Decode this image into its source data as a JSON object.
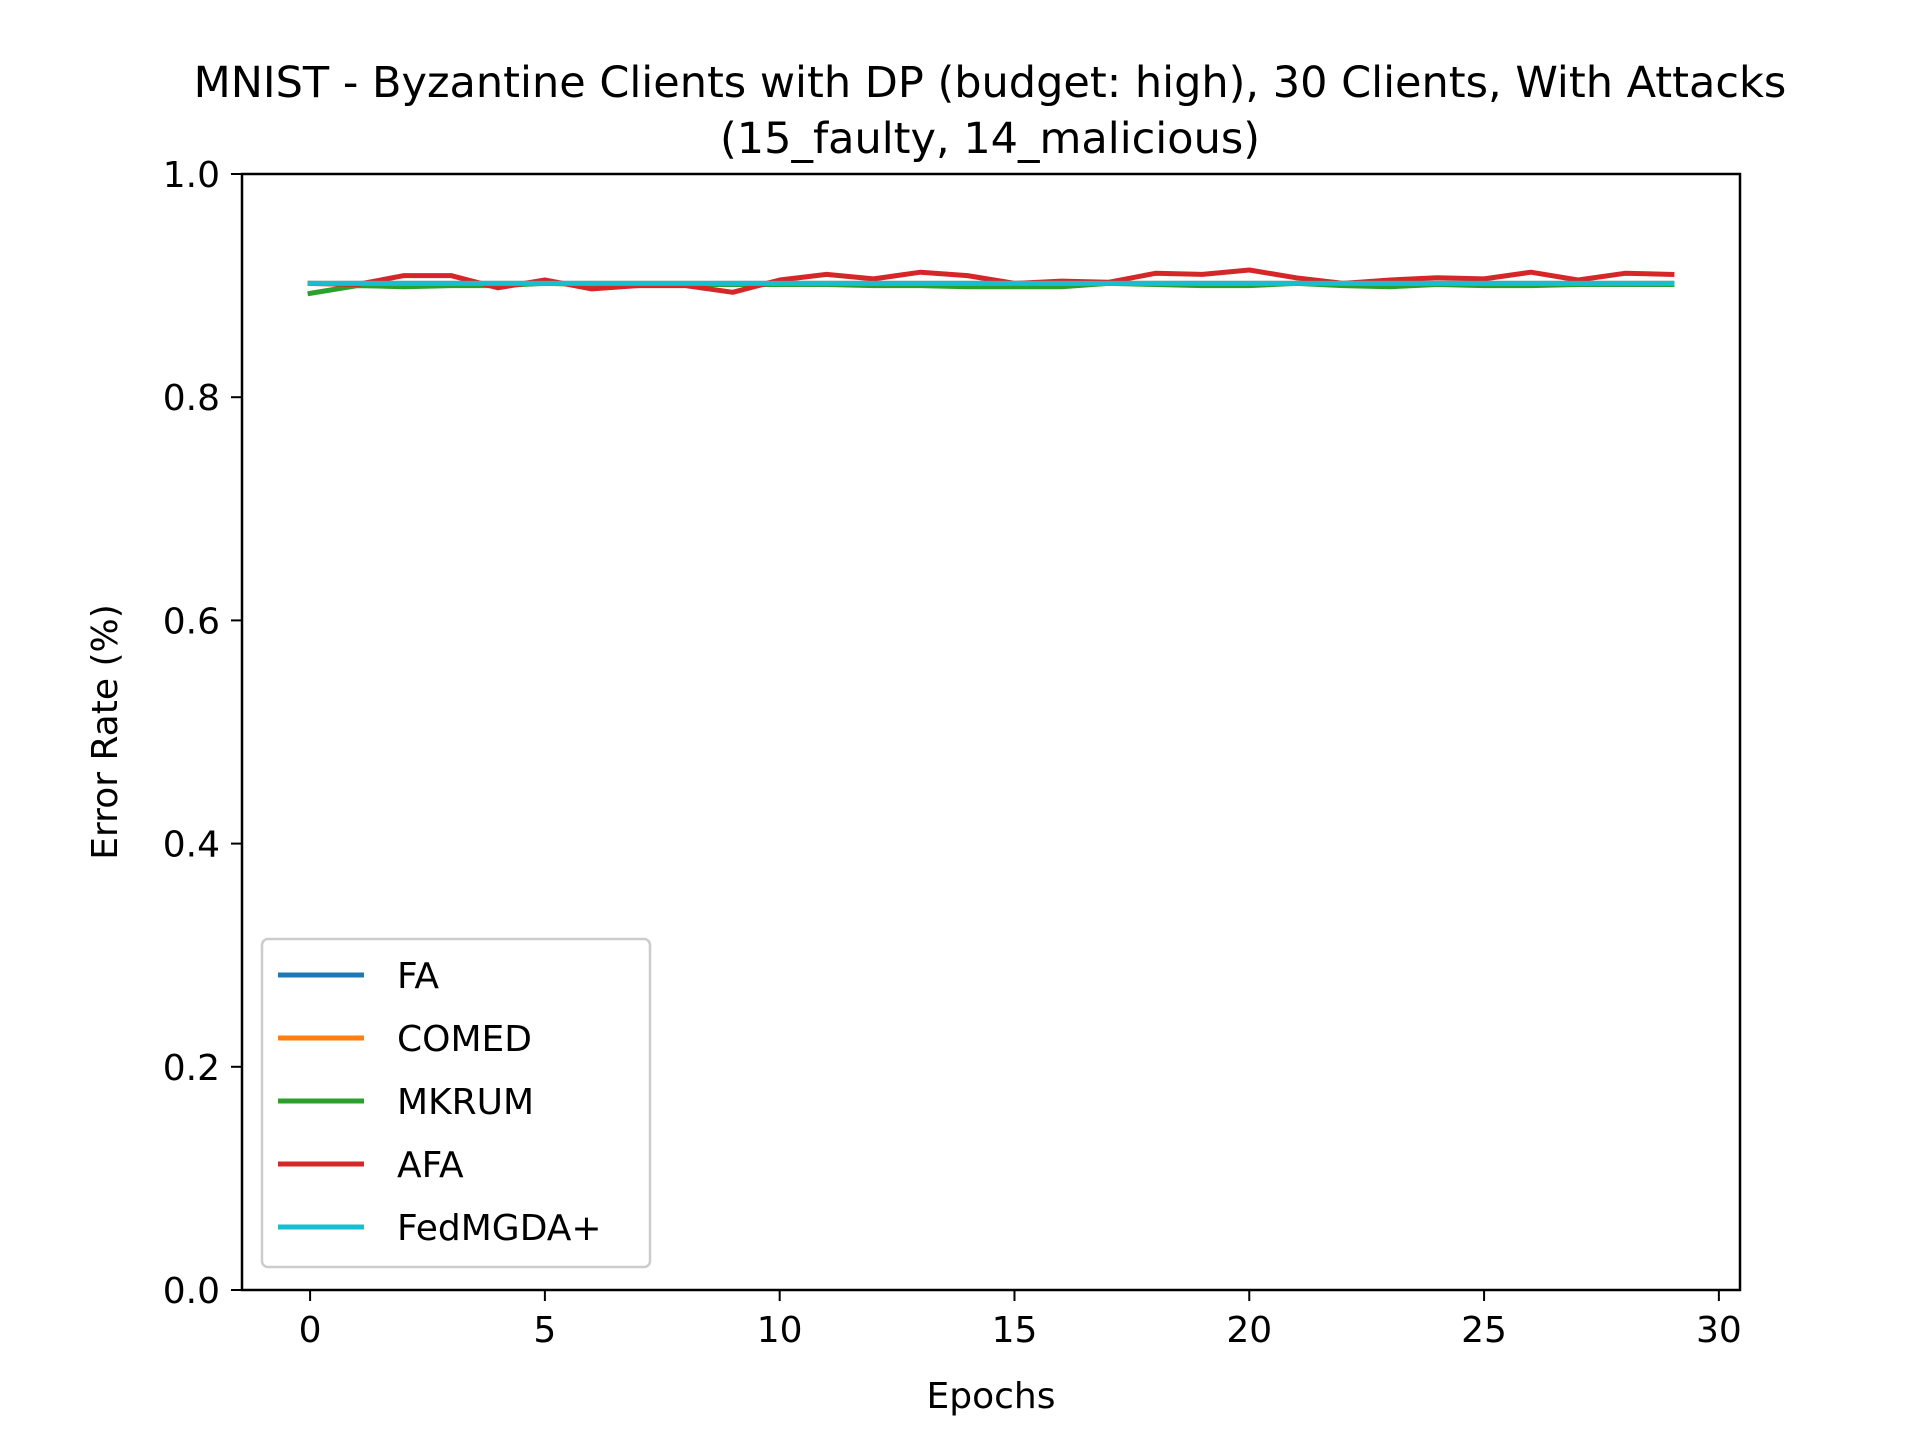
{
  "chart_data": {
    "type": "line",
    "title_line1": "MNIST - Byzantine Clients with DP (budget: high), 30 Clients, With Attacks",
    "title_line2": "(15_faulty, 14_malicious)",
    "xlabel": "Epochs",
    "ylabel": "Error Rate (%)",
    "xlim": [
      -1.45,
      30.45
    ],
    "ylim": [
      0.0,
      1.0
    ],
    "xticks": [
      0,
      5,
      10,
      15,
      20,
      25,
      30
    ],
    "xtick_labels": [
      "0",
      "5",
      "10",
      "15",
      "20",
      "25",
      "30"
    ],
    "yticks": [
      0.0,
      0.2,
      0.4,
      0.6,
      0.8,
      1.0
    ],
    "ytick_labels": [
      "0.0",
      "0.2",
      "0.4",
      "0.6",
      "0.8",
      "1.0"
    ],
    "grid": false,
    "legend_position": "lower-left",
    "x": [
      0,
      1,
      2,
      3,
      4,
      5,
      6,
      7,
      8,
      9,
      10,
      11,
      12,
      13,
      14,
      15,
      16,
      17,
      18,
      19,
      20,
      21,
      22,
      23,
      24,
      25,
      26,
      27,
      28,
      29
    ],
    "series": [
      {
        "name": "FA",
        "color": "#1f77b4",
        "values": [
          0.902,
          0.902,
          0.902,
          0.902,
          0.902,
          0.902,
          0.902,
          0.902,
          0.902,
          0.902,
          0.902,
          0.902,
          0.902,
          0.902,
          0.902,
          0.902,
          0.902,
          0.902,
          0.902,
          0.902,
          0.902,
          0.902,
          0.902,
          0.902,
          0.902,
          0.902,
          0.902,
          0.902,
          0.902,
          0.902
        ]
      },
      {
        "name": "COMED",
        "color": "#ff7f0e",
        "values": [
          0.902,
          0.902,
          0.902,
          0.902,
          0.902,
          0.902,
          0.902,
          0.902,
          0.902,
          0.902,
          0.902,
          0.902,
          0.902,
          0.902,
          0.902,
          0.902,
          0.902,
          0.902,
          0.902,
          0.902,
          0.902,
          0.902,
          0.902,
          0.902,
          0.902,
          0.902,
          0.902,
          0.902,
          0.902,
          0.902
        ]
      },
      {
        "name": "MKRUM",
        "color": "#2ca02c",
        "values": [
          0.893,
          0.9,
          0.899,
          0.9,
          0.9,
          0.902,
          0.901,
          0.901,
          0.901,
          0.901,
          0.901,
          0.901,
          0.9,
          0.9,
          0.899,
          0.899,
          0.899,
          0.902,
          0.901,
          0.9,
          0.9,
          0.902,
          0.9,
          0.899,
          0.901,
          0.9,
          0.9,
          0.901,
          0.901,
          0.901
        ]
      },
      {
        "name": "AFA",
        "color": "#d62728",
        "values": [
          0.902,
          0.901,
          0.909,
          0.909,
          0.898,
          0.905,
          0.897,
          0.9,
          0.9,
          0.894,
          0.905,
          0.91,
          0.906,
          0.912,
          0.909,
          0.902,
          0.904,
          0.903,
          0.911,
          0.91,
          0.914,
          0.907,
          0.902,
          0.905,
          0.907,
          0.906,
          0.912,
          0.905,
          0.911,
          0.91
        ]
      },
      {
        "name": "FedMGDA+",
        "color": "#17becf",
        "values": [
          0.902,
          0.902,
          0.902,
          0.902,
          0.902,
          0.902,
          0.902,
          0.902,
          0.902,
          0.902,
          0.902,
          0.902,
          0.902,
          0.902,
          0.902,
          0.902,
          0.902,
          0.902,
          0.902,
          0.902,
          0.902,
          0.902,
          0.902,
          0.902,
          0.902,
          0.902,
          0.902,
          0.902,
          0.902,
          0.902
        ]
      }
    ]
  }
}
